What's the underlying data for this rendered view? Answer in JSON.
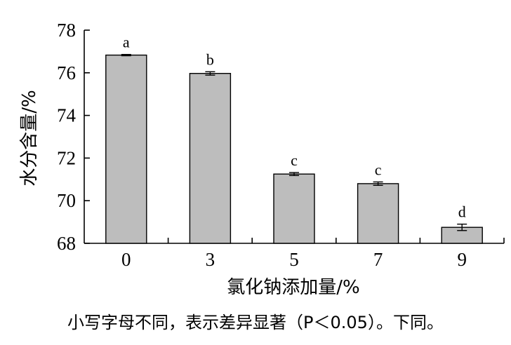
{
  "chart_data": {
    "type": "bar",
    "categories": [
      "0",
      "3",
      "5",
      "7",
      "9"
    ],
    "values": [
      76.83,
      75.97,
      71.25,
      70.8,
      68.75
    ],
    "errors": [
      0.03,
      0.08,
      0.07,
      0.08,
      0.15
    ],
    "significance_letters": [
      "a",
      "b",
      "c",
      "c",
      "d"
    ],
    "xlabel": "氯化钠添加量/%",
    "ylabel": "水分含量/%",
    "ylim": [
      68,
      78
    ],
    "yticks": [
      "68",
      "70",
      "72",
      "74",
      "76",
      "78"
    ],
    "grid": false,
    "bar_color": "#bdbdbd"
  },
  "caption": "小写字母不同，表示差异显著（P＜0.05）。下同。"
}
